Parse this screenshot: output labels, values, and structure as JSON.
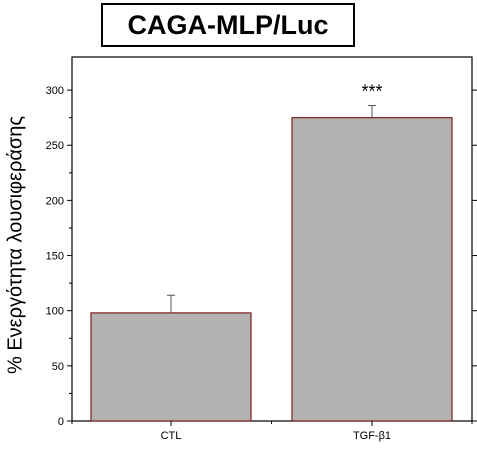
{
  "chart_data": {
    "type": "bar",
    "title": "CAGA-MLP/Luc",
    "xlabel": "",
    "ylabel": "% Ενεργότητα λουσιφεράσης",
    "categories": [
      "CTL",
      "TGF-β1"
    ],
    "values": [
      98,
      275
    ],
    "errors": [
      16,
      11
    ],
    "annotations": [
      "",
      "***"
    ],
    "ylim": [
      0,
      330
    ],
    "yticks": [
      "0",
      "50",
      "100",
      "150",
      "200",
      "250",
      "300"
    ],
    "ytick_values": [
      0,
      50,
      100,
      150,
      200,
      250,
      300
    ],
    "grid": false,
    "bar_color": "#b3b3b3",
    "bar_edge_color": "#7a1f1f"
  }
}
